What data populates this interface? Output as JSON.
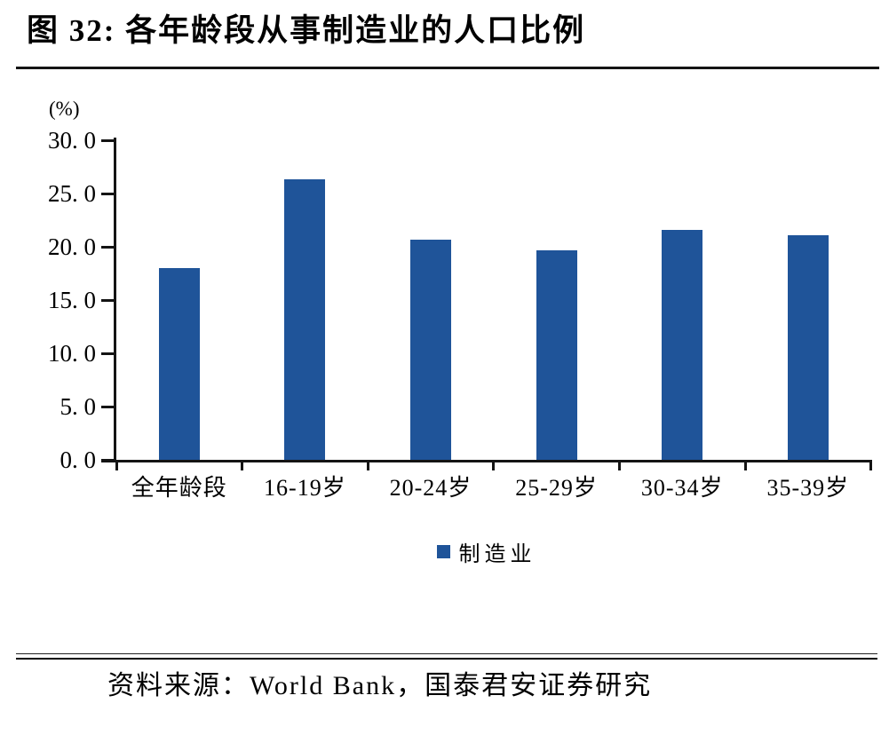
{
  "figure": {
    "number_title": "图 32:  各年龄段从事制造业的人口比例",
    "source": "资料来源：World Bank，国泰君安证券研究"
  },
  "chart_data": {
    "type": "bar",
    "title": "各年龄段从事制造业的人口比例",
    "unit_label": "(%)",
    "categories": [
      "全年龄段",
      "16-19岁",
      "20-24岁",
      "25-29岁",
      "30-34岁",
      "35-39岁"
    ],
    "series": [
      {
        "name": "制造业",
        "values": [
          18.0,
          26.3,
          20.7,
          19.7,
          21.6,
          21.1
        ]
      }
    ],
    "xlabel": "",
    "ylabel": "(%)",
    "ylim": [
      0,
      30
    ],
    "y_tick_values": [
      30,
      25,
      20,
      15,
      10,
      5,
      0
    ],
    "y_tick_labels": [
      "30. 0",
      "25. 0",
      "20. 0",
      "15. 0",
      "10. 0",
      "5. 0",
      "0. 0"
    ],
    "grid": false,
    "legend_position": "bottom",
    "bar_color": "#1F5499",
    "axis_color": "#141414"
  }
}
